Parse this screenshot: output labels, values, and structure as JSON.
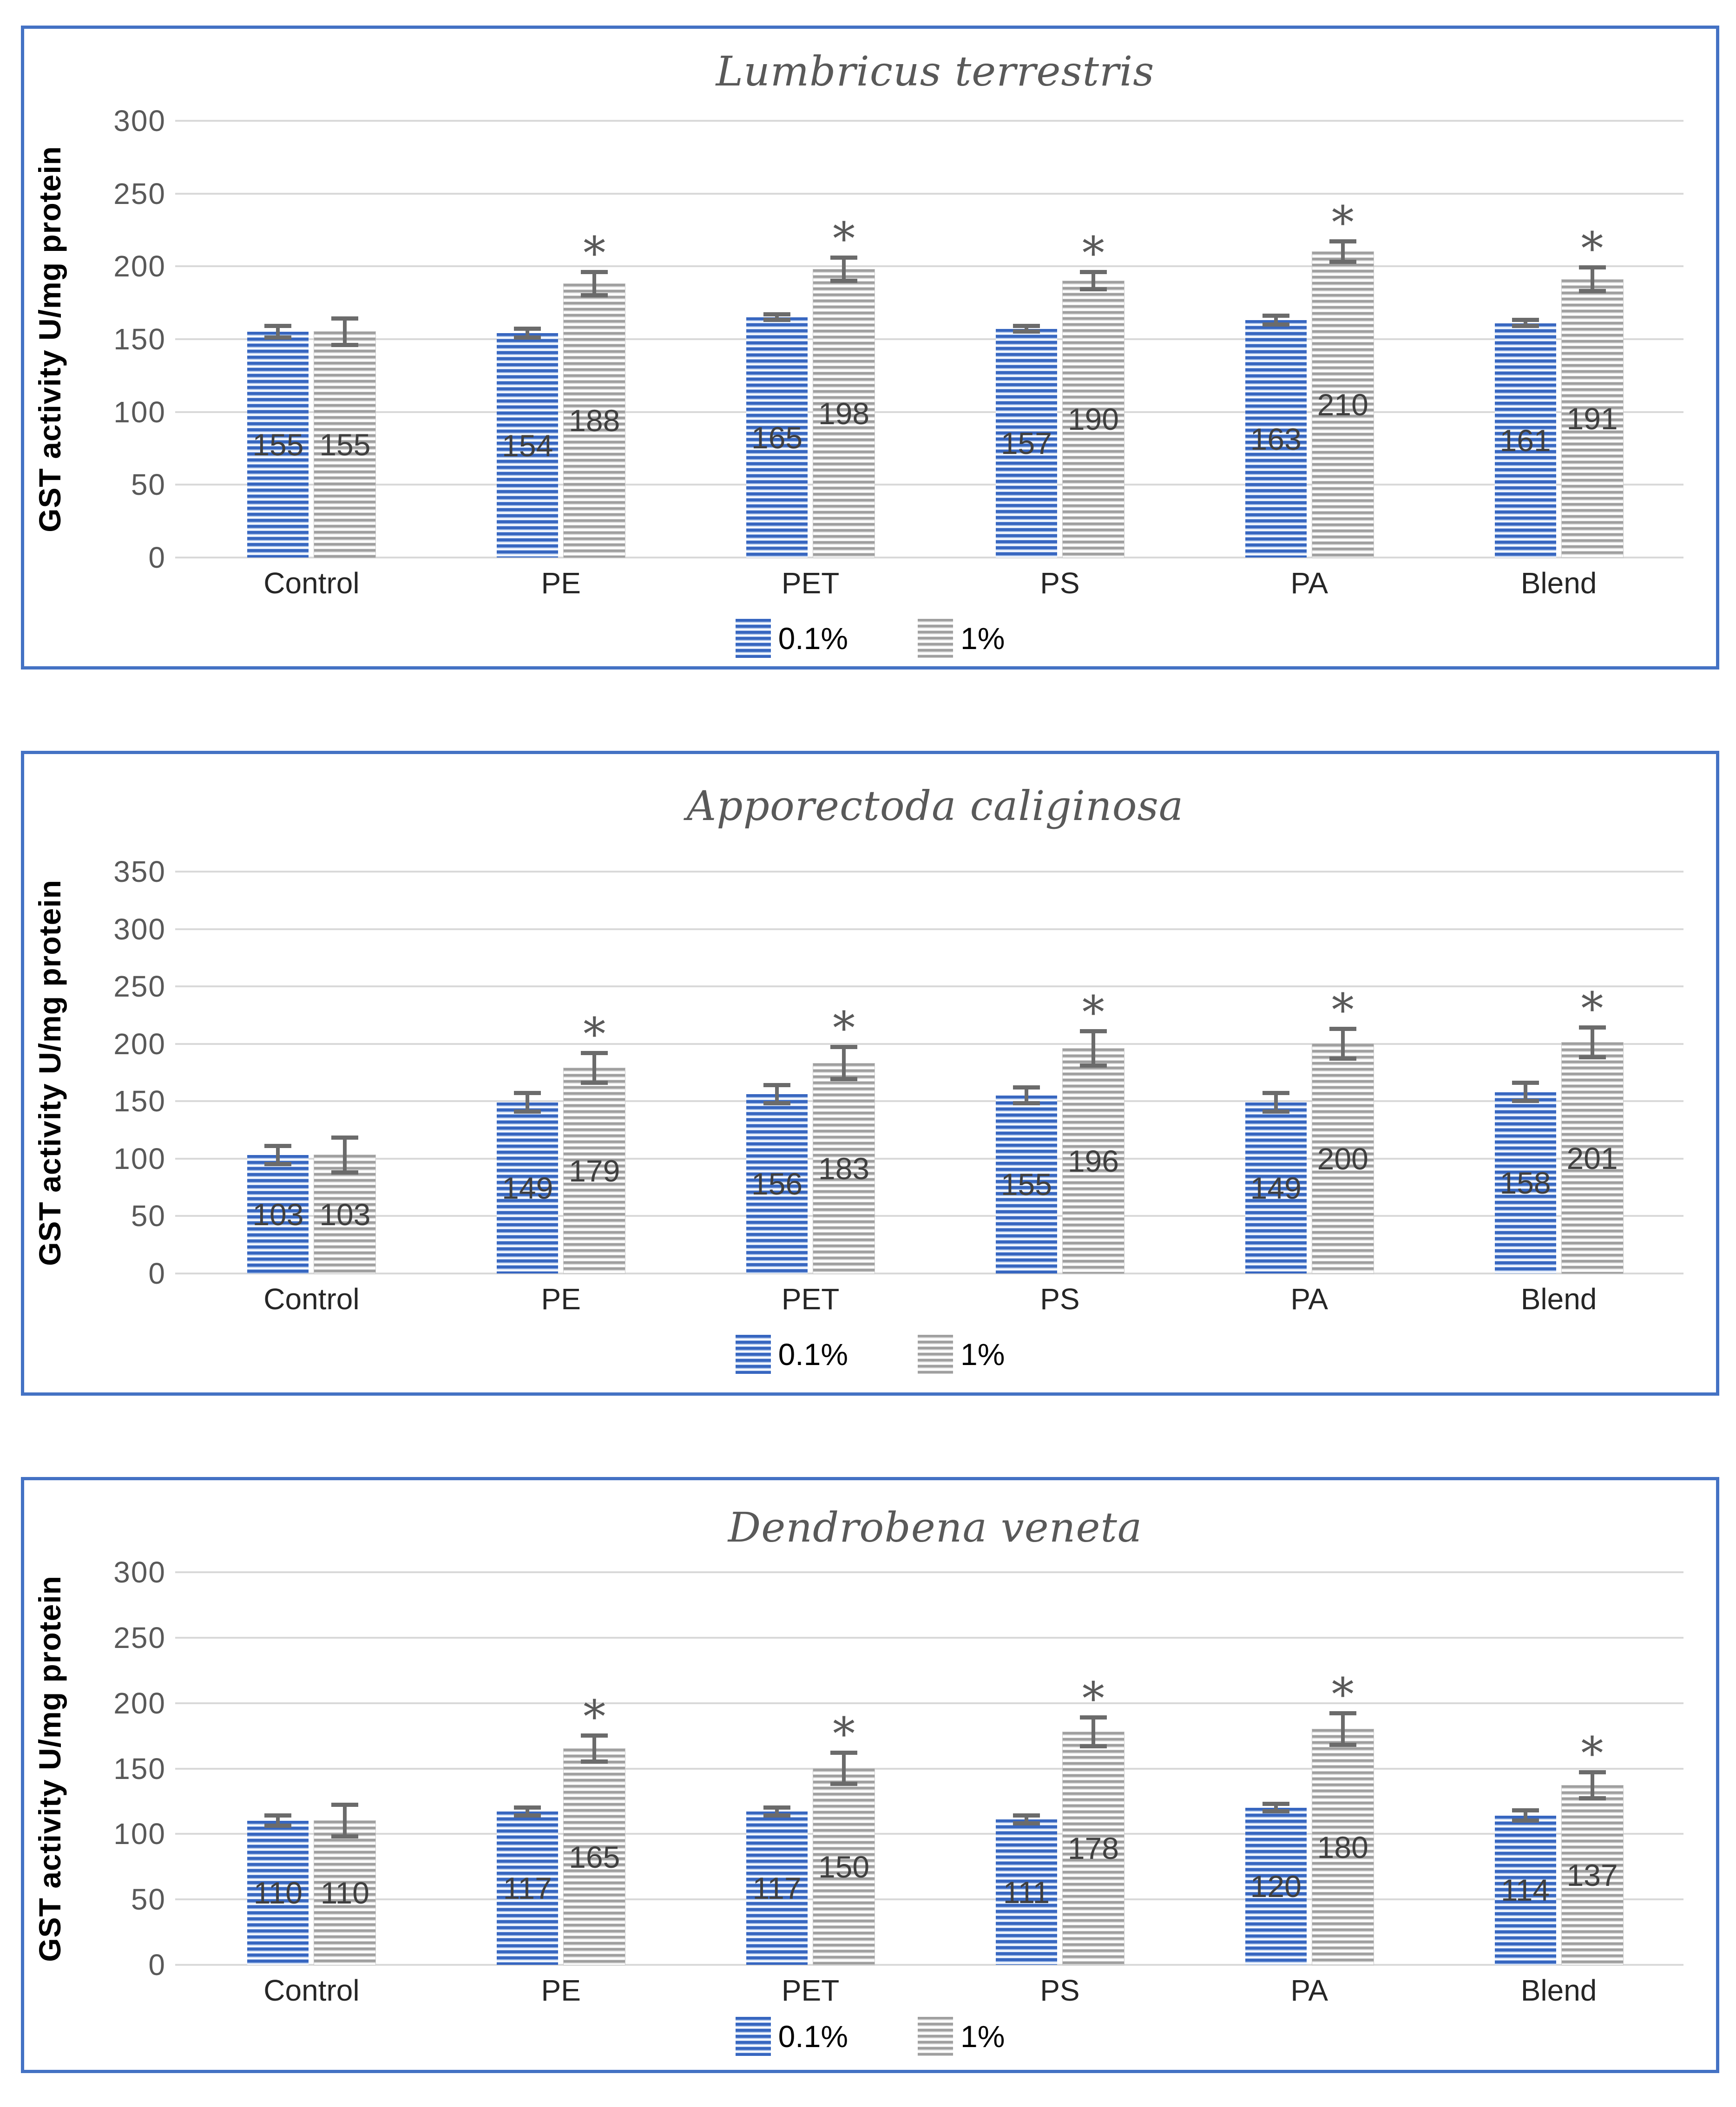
{
  "colors": {
    "panel_border": "#4472C4",
    "bar_blue": "#4472C4",
    "bar_gray": "#A6A6A6",
    "grid": "#D9D9D9",
    "error_bar": "#6B6B6B",
    "title_text": "#595959",
    "tick_text": "#595959",
    "category_text": "#262626",
    "data_label_text": "#3F3F3F"
  },
  "sig_marker": "*",
  "chart_data": [
    {
      "type": "bar",
      "title": "Lumbricus terrestris",
      "ylabel": "GST activity U/mg protein",
      "categories": [
        "Control",
        "PE",
        "PET",
        "PS",
        "PA",
        "Blend"
      ],
      "ylim": [
        0,
        300
      ],
      "ytick_step": 50,
      "yticks": [
        0,
        50,
        100,
        150,
        200,
        250,
        300
      ],
      "grid": true,
      "legend_position": "bottom",
      "series": [
        {
          "name": "0.1%",
          "values": [
            155,
            154,
            165,
            157,
            163,
            161
          ],
          "errors": [
            4,
            3,
            2,
            2,
            3,
            2
          ],
          "sig": [
            false,
            false,
            false,
            false,
            false,
            false
          ]
        },
        {
          "name": "1%",
          "values": [
            155,
            188,
            198,
            190,
            210,
            191
          ],
          "errors": [
            9,
            8,
            8,
            6,
            7,
            8
          ],
          "sig": [
            false,
            true,
            true,
            true,
            true,
            true
          ]
        }
      ]
    },
    {
      "type": "bar",
      "title": "Apporectoda caliginosa",
      "ylabel": "GST activity U/mg protein",
      "categories": [
        "Control",
        "PE",
        "PET",
        "PS",
        "PA",
        "Blend"
      ],
      "ylim": [
        0,
        350
      ],
      "ytick_step": 50,
      "yticks": [
        0,
        50,
        100,
        150,
        200,
        250,
        300,
        350
      ],
      "grid": true,
      "legend_position": "bottom",
      "series": [
        {
          "name": "0.1%",
          "values": [
            103,
            149,
            156,
            155,
            149,
            158
          ],
          "errors": [
            8,
            8,
            8,
            7,
            8,
            8
          ],
          "sig": [
            false,
            false,
            false,
            false,
            false,
            false
          ]
        },
        {
          "name": "1%",
          "values": [
            103,
            179,
            183,
            196,
            200,
            201
          ],
          "errors": [
            15,
            13,
            14,
            15,
            13,
            13
          ],
          "sig": [
            false,
            true,
            true,
            true,
            true,
            true
          ]
        }
      ]
    },
    {
      "type": "bar",
      "title": "Dendrobena veneta",
      "ylabel": "GST activity U/mg protein",
      "categories": [
        "Control",
        "PE",
        "PET",
        "PS",
        "PA",
        "Blend"
      ],
      "ylim": [
        0,
        300
      ],
      "ytick_step": 50,
      "yticks": [
        0,
        50,
        100,
        150,
        200,
        250,
        300
      ],
      "grid": true,
      "legend_position": "bottom",
      "series": [
        {
          "name": "0.1%",
          "values": [
            110,
            117,
            117,
            111,
            120,
            114
          ],
          "errors": [
            4,
            3,
            3,
            3,
            3,
            4
          ],
          "sig": [
            false,
            false,
            false,
            false,
            false,
            false
          ]
        },
        {
          "name": "1%",
          "values": [
            110,
            165,
            150,
            178,
            180,
            137
          ],
          "errors": [
            12,
            10,
            12,
            11,
            12,
            10
          ],
          "sig": [
            false,
            true,
            true,
            true,
            true,
            true
          ]
        }
      ]
    }
  ]
}
